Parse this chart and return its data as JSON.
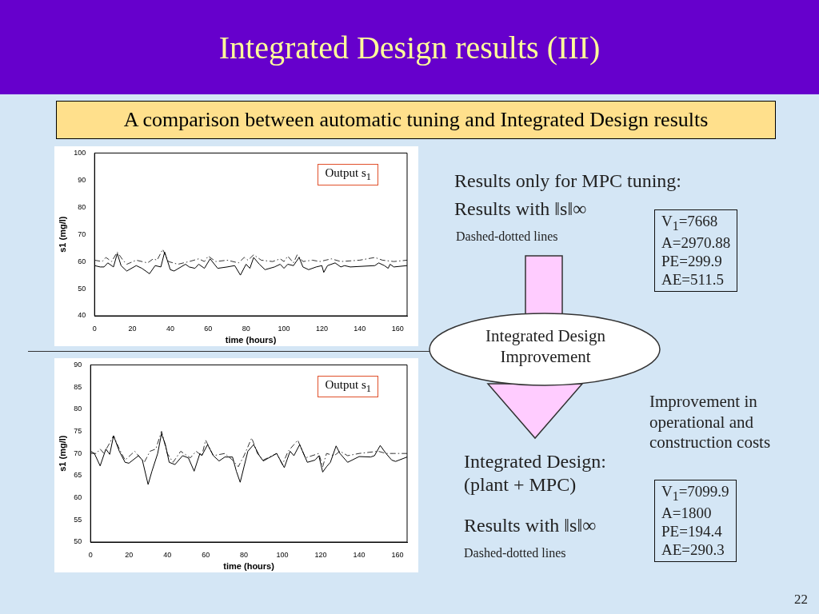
{
  "chart_data": [
    {
      "type": "other",
      "title": "Integrated Design results (III)",
      "subtitle": "A comparison between automatic tuning and Integrated Design results",
      "annotations": [
        "Results only for MPC tuning:",
        "Results with ‖s‖∞",
        "Dashed-dotted lines",
        "V$_{1}$=7668\nA=2970.88\nPE=299.9\nAE=511.5",
        "Integrated Design\nImprovement",
        "Improvement in\noperational and\nconstruction costs",
        "Integrated Design:\n(plant + MPC)",
        "Results with ‖s‖∞",
        "Dashed-dotted lines",
        "V$_{1}$=7099.9\nA=1800\nPE=194.4\nAE=290.3",
        "22"
      ]
    },
    {
      "type": "line",
      "xlabel": "time (hours)",
      "ylabel": "s1 (mg/l)",
      "xlim": [
        0,
        165
      ],
      "xticks": [
        0,
        20,
        40,
        60,
        80,
        100,
        120,
        140,
        160
      ],
      "ylim": [
        40,
        100
      ],
      "yticks": [
        40,
        50,
        60,
        70,
        80,
        90,
        100
      ],
      "grid": false,
      "annotations": [
        "Output s$_{1}$"
      ],
      "series": [
        {
          "color": "#000000",
          "line_style": "solid",
          "x": [
            0,
            3,
            5,
            7,
            10,
            12,
            14,
            17,
            22,
            25,
            29,
            32,
            35,
            37,
            40,
            42,
            48,
            50,
            53,
            55,
            58,
            61,
            65,
            70,
            74,
            77,
            80,
            82,
            84,
            87,
            90,
            95,
            98,
            100,
            102,
            105,
            108,
            110,
            113,
            117,
            120,
            121,
            123,
            127,
            130,
            132,
            135,
            148,
            150,
            153,
            155,
            156,
            158,
            165
          ],
          "values": [
            58.5,
            58,
            58,
            59.5,
            58,
            63,
            58.5,
            56.5,
            58.5,
            57.5,
            55.5,
            58.5,
            58,
            63.5,
            57,
            56.5,
            59,
            58,
            57.5,
            59,
            57.5,
            61,
            57.5,
            58,
            58.5,
            55,
            59,
            57.5,
            61.5,
            59,
            57,
            58,
            59,
            57.5,
            59,
            58.5,
            61.5,
            58,
            57,
            58,
            58.5,
            56,
            58.5,
            59.5,
            58,
            58.5,
            58,
            58.5,
            59.5,
            58.5,
            57.5,
            59,
            58,
            58.5
          ]
        },
        {
          "color": "#333333",
          "line_style": "dashed",
          "x": [
            0,
            4,
            6,
            9,
            12,
            15,
            17,
            22,
            28,
            31,
            33,
            36,
            39,
            44,
            50,
            55,
            58,
            60,
            64,
            70,
            76,
            79,
            81,
            84,
            88,
            94,
            98,
            100,
            102,
            105,
            107,
            110,
            115,
            119,
            122,
            125,
            130,
            140,
            148,
            152,
            158,
            165
          ],
          "values": [
            60.5,
            60,
            61.5,
            60,
            63.5,
            60.5,
            59,
            60.5,
            59.5,
            61,
            60.5,
            64.5,
            60,
            59,
            60,
            61,
            60,
            62,
            60,
            60.5,
            59.5,
            61.5,
            60.5,
            62.5,
            60.5,
            60,
            61,
            60,
            62,
            59.5,
            62.5,
            60,
            60.5,
            60,
            60.5,
            61,
            60,
            60.5,
            61.5,
            60.5,
            60,
            60.5
          ]
        }
      ]
    },
    {
      "type": "line",
      "xlabel": "time (hours)",
      "ylabel": "s1 (mg/l)",
      "xlim": [
        0,
        165
      ],
      "xticks": [
        0,
        20,
        40,
        60,
        80,
        100,
        120,
        140,
        160
      ],
      "ylim": [
        50,
        90
      ],
      "yticks": [
        50,
        55,
        60,
        65,
        70,
        75,
        80,
        85,
        90
      ],
      "grid": false,
      "annotations": [
        "Output s$_{1}$"
      ],
      "series": [
        {
          "color": "#000000",
          "line_style": "solid",
          "x": [
            0,
            2,
            5,
            8,
            10,
            12,
            15,
            18,
            20,
            25,
            27,
            30,
            32,
            35,
            37,
            39,
            41,
            44,
            48,
            51,
            54,
            57,
            58,
            61,
            64,
            67,
            70,
            74,
            76,
            78,
            80,
            82,
            85,
            88,
            90,
            95,
            97,
            101,
            104,
            106,
            109,
            113,
            117,
            119,
            121,
            123,
            125,
            128,
            130,
            134,
            140,
            146,
            148,
            151,
            154,
            157,
            159,
            165
          ],
          "values": [
            70.5,
            70,
            67.2,
            71,
            69.8,
            74,
            70.5,
            68,
            67.8,
            69.5,
            68.5,
            63,
            66,
            70,
            74.5,
            72,
            68,
            67.5,
            69.5,
            69,
            66,
            70,
            69.5,
            72,
            69.5,
            68.3,
            69.2,
            69.2,
            66,
            63.5,
            67,
            70.5,
            72,
            69.5,
            68.3,
            69.5,
            70,
            66.8,
            70.5,
            69.5,
            72,
            68,
            68.5,
            69.5,
            65.8,
            67,
            68,
            71.7,
            70,
            68,
            69.3,
            69.2,
            69.5,
            71.8,
            70,
            68.5,
            68.2,
            69.2
          ]
        },
        {
          "color": "#333333",
          "line_style": "dashed",
          "x": [
            0,
            3,
            5,
            7,
            12,
            15,
            18,
            23,
            28,
            31,
            34,
            37,
            40,
            43,
            47,
            52,
            55,
            58,
            60,
            64,
            70,
            74,
            77,
            80,
            84,
            87,
            90,
            97,
            100,
            103,
            108,
            112,
            119,
            121,
            123,
            127,
            130,
            134,
            140,
            150,
            154,
            158,
            165
          ],
          "values": [
            70,
            70,
            71,
            70,
            74,
            71,
            68.5,
            70.5,
            68,
            70.5,
            71,
            75,
            70,
            68,
            70.5,
            69,
            70.5,
            69.5,
            73,
            69.5,
            70,
            68.5,
            67,
            69.5,
            73.5,
            70,
            68.5,
            70,
            67.5,
            70.5,
            73,
            69,
            70,
            67,
            70,
            69.5,
            70.5,
            69.5,
            70,
            70.5,
            70,
            70,
            70
          ]
        }
      ]
    }
  ]
}
